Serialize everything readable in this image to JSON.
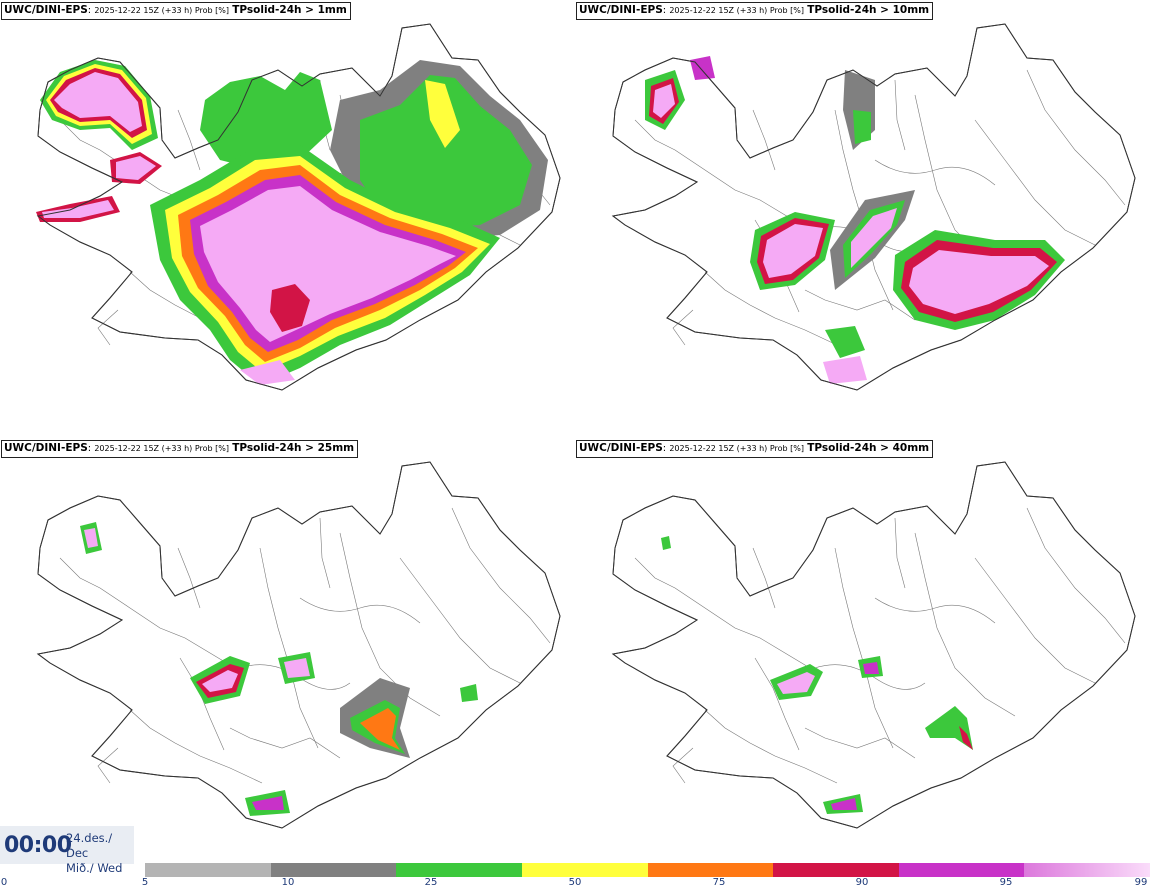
{
  "panels": [
    {
      "model": "UWC/DINI-EPS",
      "run": "2025-12-22 15Z (+33 h) Prob [%]",
      "param": "TPsolid-24h > 1mm"
    },
    {
      "model": "UWC/DINI-EPS",
      "run": "2025-12-22 15Z (+33 h) Prob [%]",
      "param": "TPsolid-24h > 10mm"
    },
    {
      "model": "UWC/DINI-EPS",
      "run": "2025-12-22 15Z (+33 h) Prob [%]",
      "param": "TPsolid-24h > 25mm"
    },
    {
      "model": "UWC/DINI-EPS",
      "run": "2025-12-22 15Z (+33 h) Prob [%]",
      "param": "TPsolid-24h > 40mm"
    }
  ],
  "clock": {
    "time": "00:00",
    "date_line1": "24.des./ Dec",
    "date_line2": "Mið./ Wed"
  },
  "legend": {
    "ticks": [
      "0",
      "5",
      "10",
      "25",
      "50",
      "75",
      "90",
      "95",
      "99"
    ],
    "colors": [
      "#b4b4b4",
      "#808080",
      "#3cc83c",
      "#ffff3c",
      "#ff7814",
      "#d21446",
      "#c832c8",
      "#f5aaf5"
    ]
  }
}
